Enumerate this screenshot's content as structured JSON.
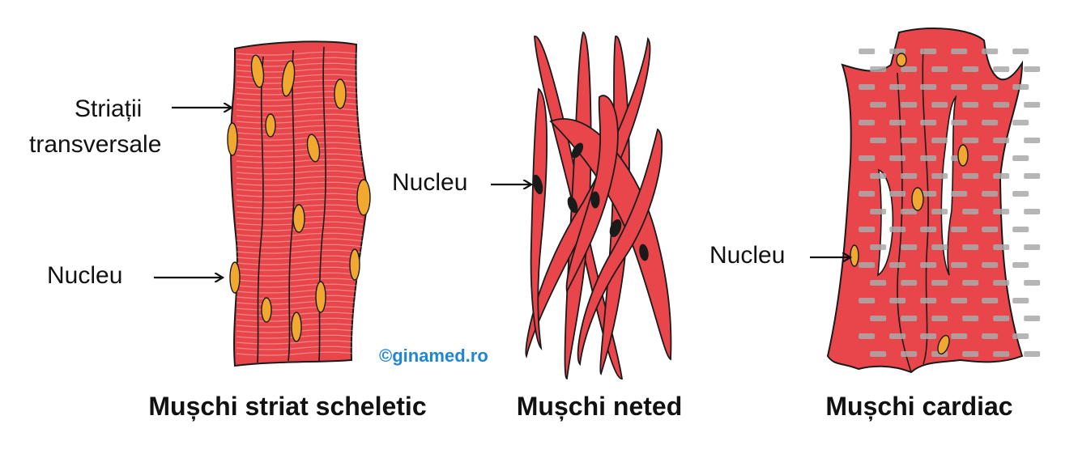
{
  "colors": {
    "tissue": "#e8464a",
    "tissue_edge": "#1a1a1a",
    "nucleus_skeletal": "#f0a830",
    "nucleus_smooth": "#1a1a1a",
    "intercalated_disc": "#a9a9a9",
    "watermark": "#1f86d6",
    "text": "#111111"
  },
  "skeletal": {
    "title": "Mușchi striat scheletic",
    "label_striations_line1": "Striații",
    "label_striations_line2": "transversale",
    "label_nucleus": "Nucleu",
    "icons": [
      "arrow-icon",
      "arrow-icon"
    ]
  },
  "smooth": {
    "title": "Mușchi neted",
    "label_nucleus": "Nucleu",
    "icons": [
      "arrow-icon"
    ]
  },
  "cardiac": {
    "title": "Mușchi cardiac",
    "label_nucleus": "Nucleu",
    "icons": [
      "arrow-icon"
    ]
  },
  "watermark": "©ginamed.ro"
}
